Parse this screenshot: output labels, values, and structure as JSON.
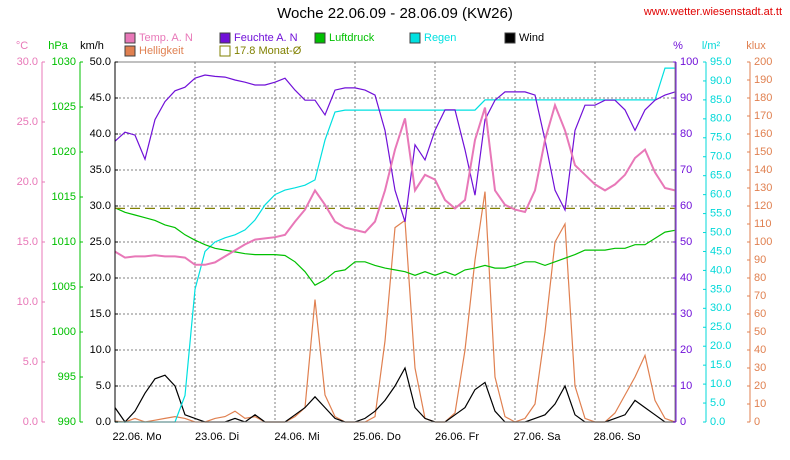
{
  "chart_data": {
    "type": "line",
    "title": "Woche 22.06.09 - 28.06.09 (KW26)",
    "source": "www.wetter.wiesenstadt.at.tt",
    "xlim": [
      0,
      7
    ],
    "xticks": [
      {
        "value": 0,
        "label": "22.06.  Mo"
      },
      {
        "value": 1,
        "label": "23.06.  Di"
      },
      {
        "value": 2,
        "label": "24.06.  Mi"
      },
      {
        "value": 3,
        "label": "25.06.  Do"
      },
      {
        "value": 4,
        "label": "26.06.  Fr"
      },
      {
        "value": 5,
        "label": "27.06.  Sa"
      },
      {
        "value": 6,
        "label": "28.06.  So"
      }
    ],
    "grid": true,
    "axes": [
      {
        "label": "°C",
        "color": "#e878b8",
        "lim": [
          0,
          30
        ],
        "ticks": [
          {
            "value": 0,
            "label": "0.0"
          },
          {
            "value": 5,
            "label": "5.0"
          },
          {
            "value": 10,
            "label": "10.0"
          },
          {
            "value": 15,
            "label": "15.0"
          },
          {
            "value": 20,
            "label": "20.0"
          },
          {
            "value": 25,
            "label": "25.0"
          },
          {
            "value": 30,
            "label": "30.0"
          }
        ]
      },
      {
        "label": "hPa",
        "color": "#00c000",
        "lim": [
          990,
          1030
        ],
        "ticks": [
          990,
          995,
          1000,
          1005,
          1010,
          1015,
          1020,
          1025,
          1030
        ]
      },
      {
        "label": "km/h",
        "color": "#000000",
        "lim": [
          0,
          50
        ],
        "grid": true,
        "ticks": [
          {
            "value": 0,
            "label": "0.0"
          },
          {
            "value": 5,
            "label": "5.0"
          },
          {
            "value": 10,
            "label": "10.0"
          },
          {
            "value": 15,
            "label": "15.0"
          },
          {
            "value": 20,
            "label": "20.0"
          },
          {
            "value": 25,
            "label": "25.0"
          },
          {
            "value": 30,
            "label": "30.0"
          },
          {
            "value": 35,
            "label": "35.0"
          },
          {
            "value": 40,
            "label": "40.0"
          },
          {
            "value": 45,
            "label": "45.0"
          },
          {
            "value": 50,
            "label": "50.0"
          }
        ]
      },
      {
        "label": "%",
        "color": "#7010d8",
        "lim": [
          0,
          100
        ],
        "ticks": [
          0,
          10,
          20,
          30,
          40,
          50,
          60,
          70,
          80,
          90,
          100
        ]
      },
      {
        "label": "l/m²",
        "color": "#00d8d8",
        "lim": [
          0,
          95
        ],
        "ticks": [
          {
            "value": 0,
            "label": "0.0"
          },
          {
            "value": 5,
            "label": "5.0"
          },
          {
            "value": 10,
            "label": "10.0"
          },
          {
            "value": 15,
            "label": "15.0"
          },
          {
            "value": 20,
            "label": "20.0"
          },
          {
            "value": 25,
            "label": "25.0"
          },
          {
            "value": 30,
            "label": "30.0"
          },
          {
            "value": 35,
            "label": "35.0"
          },
          {
            "value": 40,
            "label": "40.0"
          },
          {
            "value": 45,
            "label": "45.0"
          },
          {
            "value": 50,
            "label": "50.0"
          },
          {
            "value": 55,
            "label": "55.0"
          },
          {
            "value": 60,
            "label": "60.0"
          },
          {
            "value": 65,
            "label": "65.0"
          },
          {
            "value": 70,
            "label": "70.0"
          },
          {
            "value": 75,
            "label": "75.0"
          },
          {
            "value": 80,
            "label": "80.0"
          },
          {
            "value": 85,
            "label": "85.0"
          },
          {
            "value": 90,
            "label": "90.0"
          },
          {
            "value": 95,
            "label": "95.0"
          }
        ]
      },
      {
        "label": "klux",
        "color": "#e08050",
        "lim": [
          0,
          200
        ],
        "ticks": [
          0,
          10,
          20,
          30,
          40,
          50,
          60,
          70,
          80,
          90,
          100,
          110,
          120,
          130,
          140,
          150,
          160,
          170,
          180,
          190,
          200
        ]
      }
    ],
    "x": [
      0,
      0.125,
      0.25,
      0.375,
      0.5,
      0.625,
      0.75,
      0.875,
      1,
      1.125,
      1.25,
      1.375,
      1.5,
      1.625,
      1.75,
      1.875,
      2,
      2.125,
      2.25,
      2.375,
      2.5,
      2.625,
      2.75,
      2.875,
      3,
      3.125,
      3.25,
      3.375,
      3.5,
      3.625,
      3.75,
      3.875,
      4,
      4.125,
      4.25,
      4.375,
      4.5,
      4.625,
      4.75,
      4.875,
      5,
      5.125,
      5.25,
      5.375,
      5.5,
      5.625,
      5.75,
      5.875,
      6,
      6.125,
      6.25,
      6.375,
      6.5,
      6.625,
      6.75,
      6.875,
      7
    ],
    "series": [
      {
        "name": "Temp. A. N",
        "color": "#e878b8",
        "axis": 0,
        "values": [
          14.2,
          13.7,
          13.8,
          13.8,
          13.9,
          13.8,
          13.8,
          13.7,
          13.1,
          13.1,
          13.3,
          13.8,
          14.3,
          14.8,
          15.2,
          15.3,
          15.4,
          15.6,
          16.7,
          17.7,
          19.3,
          18.1,
          16.7,
          16.2,
          16,
          15.8,
          16.7,
          19.3,
          22.7,
          25.3,
          19.3,
          20.6,
          20.2,
          18.5,
          17.8,
          18.5,
          23.5,
          26.2,
          19.3,
          18.1,
          17.7,
          17.5,
          19.3,
          23.5,
          26.4,
          24.3,
          21.4,
          20.6,
          19.8,
          19.3,
          19.8,
          20.6,
          22,
          22.7,
          20.8,
          19.5,
          19.3
        ]
      },
      {
        "name": "Feuchte A. N",
        "color": "#7010d8",
        "axis": 3,
        "values": [
          78,
          80.5,
          79.7,
          73,
          84,
          89,
          92,
          93,
          95.5,
          96.4,
          96,
          95.8,
          95,
          94.4,
          93.6,
          93.6,
          94.4,
          95.5,
          92.2,
          89.4,
          89.4,
          85.3,
          92.2,
          92.8,
          92.8,
          92.2,
          90.8,
          81,
          64.4,
          55.6,
          77,
          72.8,
          81,
          86.7,
          86.7,
          75.6,
          63,
          84,
          89.4,
          91.7,
          91.7,
          91.7,
          90.8,
          78.3,
          64.4,
          58.9,
          81,
          88,
          88,
          89.4,
          89.4,
          86.7,
          81,
          86.7,
          89.4,
          90.8,
          91.7
        ]
      },
      {
        "name": "Luftdruck",
        "color": "#00c000",
        "axis": 1,
        "values": [
          1013.8,
          1013.3,
          1013,
          1012.7,
          1012.4,
          1011.9,
          1011.6,
          1010.8,
          1010.2,
          1009.7,
          1009.3,
          1009.1,
          1008.9,
          1008.7,
          1008.6,
          1008.6,
          1008.6,
          1008.5,
          1007.8,
          1006.7,
          1005.2,
          1005.8,
          1006.7,
          1006.9,
          1007.8,
          1007.8,
          1007.4,
          1007.1,
          1006.9,
          1006.7,
          1006.3,
          1006.7,
          1006.3,
          1006.7,
          1006.3,
          1006.9,
          1007.1,
          1007.4,
          1007.1,
          1007.1,
          1007.4,
          1007.8,
          1007.8,
          1007.4,
          1007.8,
          1008.2,
          1008.6,
          1009.1,
          1009.1,
          1009.1,
          1009.3,
          1009.3,
          1009.7,
          1009.7,
          1010.4,
          1011.1,
          1011.3
        ]
      },
      {
        "name": "Regen",
        "color": "#00e0e0",
        "axis": 4,
        "values": [
          0,
          0,
          0,
          0,
          0,
          0,
          0,
          7,
          35,
          45,
          47.5,
          48.6,
          49.4,
          50.7,
          53.3,
          57.3,
          60,
          61.2,
          61.8,
          62.5,
          63.9,
          74.4,
          81.8,
          82.3,
          82.3,
          82.3,
          82.3,
          82.3,
          82.3,
          82.3,
          82.3,
          82.3,
          82.3,
          82.3,
          82.3,
          82.3,
          82.3,
          85,
          85,
          85,
          85,
          85,
          85,
          85,
          85,
          85,
          85,
          85,
          85,
          85,
          85,
          85,
          85,
          85,
          85,
          93.4,
          93.4
        ]
      },
      {
        "name": "Wind",
        "color": "#000000",
        "axis": 2,
        "values": [
          2,
          0,
          1.5,
          4,
          6,
          6.5,
          5,
          1,
          0.5,
          0,
          0,
          0,
          0.5,
          0,
          1,
          0,
          0,
          0,
          1,
          2,
          3.5,
          2,
          0.5,
          0,
          0,
          0.5,
          1.5,
          3,
          5,
          7.5,
          2,
          0.5,
          0,
          0,
          1,
          2,
          4.5,
          5.5,
          1.5,
          0,
          0,
          0,
          0.5,
          1,
          2.5,
          5,
          1,
          0,
          0,
          0,
          0.5,
          1,
          3,
          2,
          1,
          0,
          0
        ]
      },
      {
        "name": "Helligkeit",
        "color": "#e08050",
        "axis": 5,
        "values": [
          0.5,
          0,
          2,
          0,
          1,
          2,
          3,
          2,
          0,
          0,
          2,
          3,
          6,
          2,
          3,
          0,
          0,
          0,
          3,
          8,
          68,
          15,
          3,
          0,
          0,
          0,
          3,
          45,
          108,
          112,
          30,
          2,
          0,
          0,
          5,
          40,
          90,
          128,
          25,
          3,
          0,
          2,
          10,
          50,
          100,
          110,
          20,
          2,
          0,
          0,
          5,
          15,
          25,
          37,
          12,
          2,
          0
        ]
      },
      {
        "name": "17.8 Monat-Ø",
        "color": "#808000",
        "axis": 0,
        "value": 17.8
      }
    ]
  }
}
